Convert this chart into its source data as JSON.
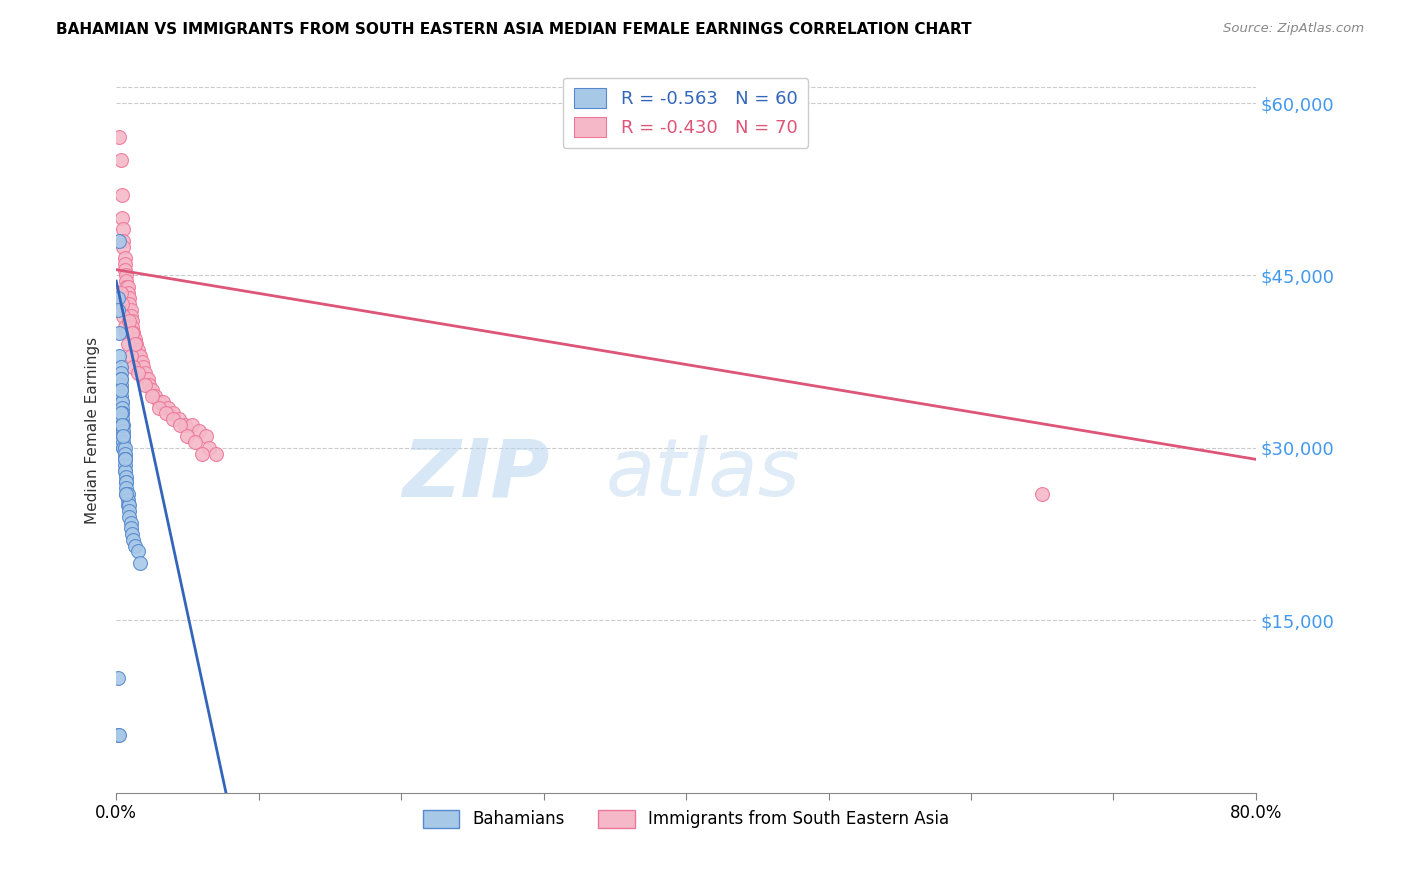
{
  "title": "BAHAMIAN VS IMMIGRANTS FROM SOUTH EASTERN ASIA MEDIAN FEMALE EARNINGS CORRELATION CHART",
  "source": "Source: ZipAtlas.com",
  "ylabel": "Median Female Earnings",
  "yticks": [
    0,
    15000,
    30000,
    45000,
    60000
  ],
  "ytick_labels": [
    "",
    "$15,000",
    "$30,000",
    "$45,000",
    "$60,000"
  ],
  "xmin": 0.0,
  "xmax": 0.8,
  "ymin": 0,
  "ymax": 63000,
  "legend_R1": "-0.563",
  "legend_N1": "60",
  "legend_R2": "-0.430",
  "legend_N2": "70",
  "color_blue_fill": "#a8c8e8",
  "color_pink_fill": "#f4b8c8",
  "color_blue_edge": "#5588cc",
  "color_pink_edge": "#ee7799",
  "color_blue_line": "#3366bb",
  "color_pink_line": "#dd5577",
  "color_ytick_label": "#4499ee",
  "watermark_zip": "ZIP",
  "watermark_atlas": "atlas",
  "blue_scatter_x": [
    0.001,
    0.001,
    0.002,
    0.002,
    0.002,
    0.003,
    0.003,
    0.003,
    0.003,
    0.003,
    0.003,
    0.004,
    0.004,
    0.004,
    0.004,
    0.004,
    0.004,
    0.004,
    0.005,
    0.005,
    0.005,
    0.005,
    0.005,
    0.005,
    0.005,
    0.006,
    0.006,
    0.006,
    0.006,
    0.006,
    0.006,
    0.006,
    0.007,
    0.007,
    0.007,
    0.007,
    0.007,
    0.008,
    0.008,
    0.008,
    0.009,
    0.009,
    0.009,
    0.01,
    0.01,
    0.011,
    0.012,
    0.013,
    0.015,
    0.017,
    0.001,
    0.001,
    0.002,
    0.003,
    0.004,
    0.005,
    0.006,
    0.007,
    0.003,
    0.003
  ],
  "blue_scatter_y": [
    43000,
    42000,
    48000,
    40000,
    38000,
    37000,
    36500,
    36000,
    35500,
    35000,
    34500,
    34000,
    34000,
    33500,
    33000,
    33000,
    32500,
    32000,
    32000,
    31500,
    31000,
    31000,
    30500,
    30000,
    30000,
    30000,
    29500,
    29000,
    29000,
    28500,
    28000,
    28000,
    27500,
    27000,
    27000,
    26500,
    26000,
    26000,
    25500,
    25000,
    25000,
    24500,
    24000,
    23500,
    23000,
    22500,
    22000,
    21500,
    21000,
    20000,
    10000,
    5000,
    5000,
    33000,
    32000,
    31000,
    29000,
    26000,
    36000,
    35000
  ],
  "pink_scatter_x": [
    0.002,
    0.003,
    0.004,
    0.004,
    0.005,
    0.005,
    0.005,
    0.006,
    0.006,
    0.006,
    0.007,
    0.007,
    0.007,
    0.008,
    0.008,
    0.008,
    0.009,
    0.009,
    0.01,
    0.01,
    0.011,
    0.011,
    0.012,
    0.012,
    0.013,
    0.014,
    0.015,
    0.016,
    0.017,
    0.018,
    0.019,
    0.02,
    0.021,
    0.022,
    0.023,
    0.025,
    0.027,
    0.03,
    0.033,
    0.036,
    0.04,
    0.044,
    0.048,
    0.053,
    0.058,
    0.063,
    0.065,
    0.07,
    0.003,
    0.004,
    0.005,
    0.006,
    0.007,
    0.008,
    0.01,
    0.012,
    0.015,
    0.02,
    0.025,
    0.03,
    0.035,
    0.04,
    0.045,
    0.05,
    0.055,
    0.06,
    0.65,
    0.009,
    0.011,
    0.013
  ],
  "pink_scatter_y": [
    57000,
    55000,
    52000,
    50000,
    49000,
    48000,
    47500,
    46500,
    46000,
    45500,
    45000,
    44500,
    44000,
    44000,
    43500,
    43000,
    43000,
    42500,
    42000,
    41500,
    41000,
    40500,
    40000,
    40000,
    39500,
    39000,
    38500,
    38000,
    38000,
    37500,
    37000,
    36500,
    36000,
    36000,
    35500,
    35000,
    34500,
    34000,
    34000,
    33500,
    33000,
    32500,
    32000,
    32000,
    31500,
    31000,
    30000,
    29500,
    43500,
    42500,
    41500,
    40500,
    40000,
    39000,
    38000,
    37000,
    36500,
    35500,
    34500,
    33500,
    33000,
    32500,
    32000,
    31000,
    30500,
    29500,
    26000,
    41000,
    40000,
    39000
  ],
  "blue_line_x": [
    0.0,
    0.077
  ],
  "blue_line_y": [
    44500,
    0
  ],
  "pink_line_x": [
    0.0,
    0.8
  ],
  "pink_line_y": [
    45500,
    29000
  ]
}
